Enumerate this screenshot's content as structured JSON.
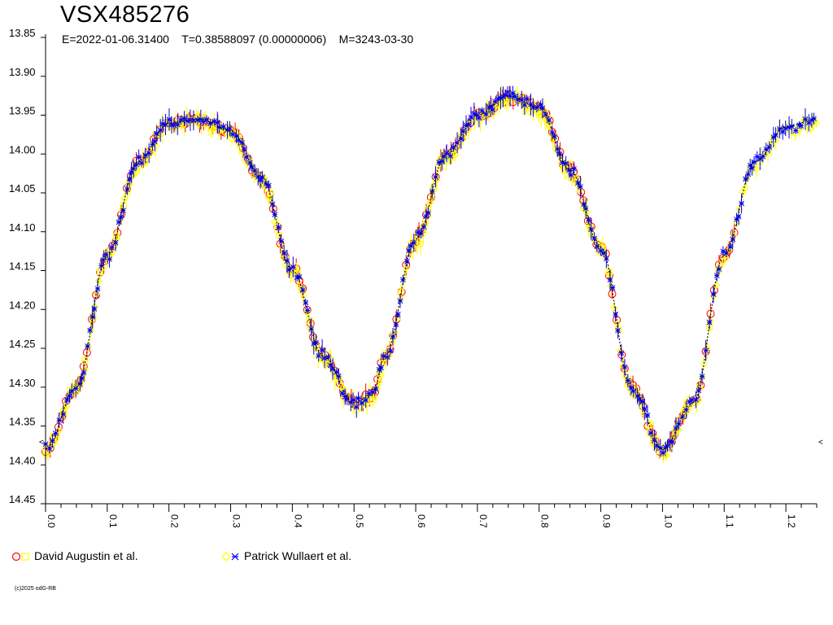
{
  "title": "VSX485276",
  "subtitle": "E=2022-01-06.31400    T=0.38588097 (0.00000006)    M=3243-03-30",
  "copyright": "(c)2025 odG-RB",
  "colors": {
    "red": "#ff0000",
    "yellow": "#ffff00",
    "blue": "#0000ff",
    "model": "#000000",
    "axis": "#000000"
  },
  "legend": [
    {
      "label": "David Augustin et al.",
      "marker_colors": [
        "#ff0000",
        "#ffff00"
      ]
    },
    {
      "label": "Patrick Wullaert et al.",
      "marker_colors": [
        "#ffff00",
        "#0000ff"
      ]
    }
  ],
  "chart_data": {
    "type": "scatter",
    "xlabel": "",
    "ylabel": "",
    "xlim": [
      0.0,
      1.25
    ],
    "ylim": [
      13.85,
      14.45
    ],
    "y_inverted": true,
    "x_ticks": [
      "0.0",
      "0.1",
      "0.2",
      "0.3",
      "0.4",
      "0.5",
      "0.6",
      "0.7",
      "0.8",
      "0.9",
      "1.0",
      "1.1",
      "1.2"
    ],
    "y_ticks": [
      "13.85",
      "13.90",
      "13.95",
      "14.00",
      "14.05",
      "14.10",
      "14.15",
      "14.20",
      "14.25",
      "14.30",
      "14.35",
      "14.40",
      "14.45"
    ],
    "right_edge_marker": "<",
    "max_marker_value": 14.37,
    "model_curve": {
      "phase": [
        0.0,
        0.05,
        0.1,
        0.15,
        0.2,
        0.25,
        0.3,
        0.35,
        0.4,
        0.45,
        0.5,
        0.53,
        0.55,
        0.6,
        0.65,
        0.7,
        0.75,
        0.8,
        0.85,
        0.9,
        0.95,
        1.0,
        1.05,
        1.1,
        1.15,
        1.2,
        1.25
      ],
      "mag": [
        14.38,
        14.3,
        14.13,
        14.01,
        13.96,
        13.955,
        13.97,
        14.03,
        14.15,
        14.26,
        14.32,
        14.31,
        14.26,
        14.11,
        14.0,
        13.95,
        13.925,
        13.94,
        14.02,
        14.12,
        14.3,
        14.38,
        14.32,
        14.13,
        14.01,
        13.965,
        13.955
      ]
    },
    "series": [
      {
        "name": "David Augustin et al.",
        "color": "#ff0000",
        "marker": "circle",
        "x_range": [
          0.0,
          1.12
        ],
        "spacing": 0.0065,
        "scatter": 0.006
      },
      {
        "name": "David Augustin et al.",
        "color": "#ffff00",
        "marker": "square",
        "x_range": [
          0.0,
          1.1
        ],
        "spacing": 0.012,
        "scatter": 0.005
      },
      {
        "name": "Patrick Wullaert et al.",
        "color": "#ffff00",
        "marker": "diamond",
        "x_range": [
          0.0,
          1.25
        ],
        "spacing": 0.0042,
        "scatter": 0.008
      },
      {
        "name": "Patrick Wullaert et al.",
        "color": "#0000ff",
        "marker": "cross",
        "x_range": [
          0.0,
          1.25
        ],
        "spacing": 0.0048,
        "scatter": 0.006
      }
    ]
  }
}
